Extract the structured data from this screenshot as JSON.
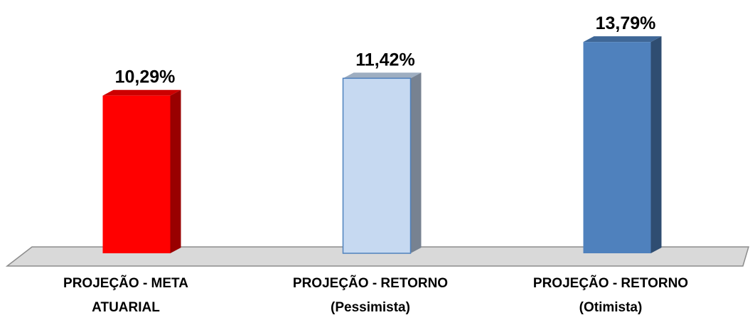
{
  "chart_data": {
    "type": "bar3d",
    "categories": [
      [
        "PROJEÇÃO - META",
        "ATUARIAL"
      ],
      [
        "PROJEÇÃO - RETORNO",
        "(Pessimista)"
      ],
      [
        "PROJEÇÃO - RETORNO",
        "(Otimista)"
      ]
    ],
    "values": [
      10.29,
      11.42,
      13.79
    ],
    "value_labels": [
      "10,29%",
      "11,42%",
      "13,79%"
    ],
    "colors": [
      "#ff0000",
      "#c6d9f1",
      "#4f81bd"
    ]
  }
}
